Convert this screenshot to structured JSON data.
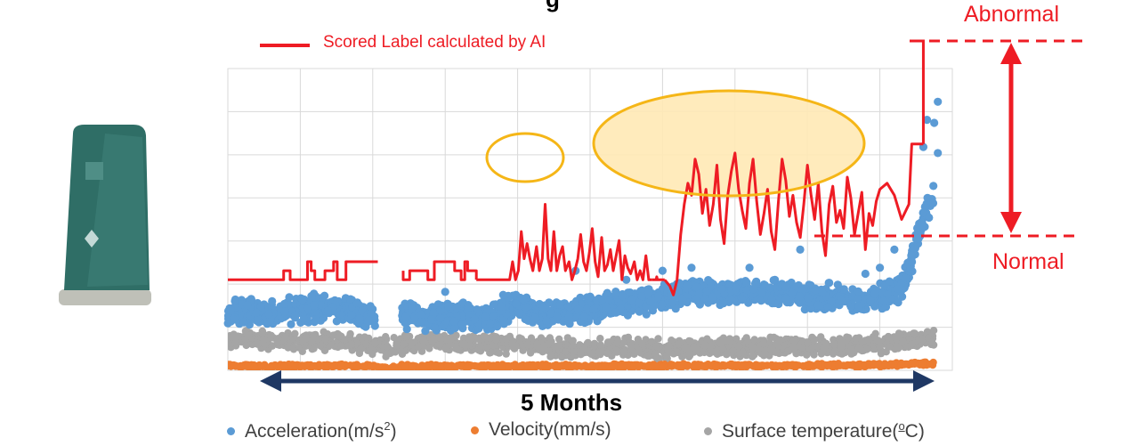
{
  "title_fragment": "g",
  "labels": {
    "abnormal": "Abnormal",
    "normal": "Normal",
    "scored_label": "Scored Label calculated by AI",
    "duration": "5 Months"
  },
  "legend": [
    {
      "label_main": "Acceleration(m/s",
      "sup": "2",
      "label_end": ")",
      "color": "#5b9bd5"
    },
    {
      "label_main": "Velocity(mm/s)",
      "sup": "",
      "label_end": "",
      "color": "#ed7d31"
    },
    {
      "label_main": "Surface temperature(",
      "sup": "o",
      "label_end": "C)",
      "color": "#a5a5a5"
    }
  ],
  "colors": {
    "scored_label": "#ee1c24",
    "acceleration": "#5b9bd5",
    "velocity": "#ed7d31",
    "temperature": "#a5a5a5",
    "highlight_fill": "#ffe9b5",
    "highlight_stroke": "#f5b617",
    "arrow": "#1f3864"
  },
  "chart_data": {
    "type": "scatter",
    "title": "",
    "xlabel": "5 Months",
    "ylabel": "",
    "x_range": [
      0,
      100
    ],
    "ylim": [
      0,
      100
    ],
    "gridlines": true,
    "series": [
      {
        "name": "Scored Label calculated by AI",
        "kind": "line",
        "states": {
          "normal": 30,
          "abnormal": 75
        },
        "segments": [
          {
            "x": [
              0,
              7.7,
              7.7,
              8.6,
              8.6,
              11,
              11,
              11.5,
              11.5,
              12,
              12,
              13.4,
              13.4,
              14.6,
              14.6,
              15.1,
              15.1,
              16.3,
              16.3,
              20.7
            ],
            "y": [
              30,
              30,
              33,
              33,
              30,
              30,
              36,
              36,
              33,
              33,
              30,
              30,
              33,
              33,
              36,
              36,
              30,
              30,
              36,
              36
            ]
          },
          {
            "x": [
              24.2,
              24.2,
              25.1,
              25.1,
              27.6,
              27.6,
              28.5,
              28.5,
              31.3,
              31.3,
              32.2,
              32.2,
              32.7,
              32.7,
              33.1,
              33.1,
              34.3,
              34.3
            ],
            "y": [
              33,
              30,
              30,
              33,
              33,
              30,
              30,
              36,
              36,
              33,
              33,
              30,
              30,
              36,
              36,
              33,
              33,
              30
            ]
          },
          {
            "x": [
              34.3,
              38.9,
              39.3,
              39.7,
              40.1,
              40.5,
              40.9,
              41.3,
              41.7,
              42.1,
              42.6,
              43,
              43.4,
              43.8,
              44.2,
              44.6,
              45,
              45.4,
              45.8,
              46.2,
              46.6,
              47.1,
              47.5,
              47.9,
              48.3,
              48.7,
              49.1,
              49.5,
              49.9,
              50.3,
              50.7,
              51.1,
              51.6,
              52,
              52.4,
              52.8,
              53.2,
              53.6,
              54,
              54.4,
              54.8,
              55.2,
              55.6,
              56.1,
              56.5,
              56.9,
              57.3,
              57.7,
              58.1,
              58.5
            ],
            "y": [
              30,
              30,
              36,
              30,
              33,
              46,
              37,
              42,
              37,
              33,
              41,
              33,
              37,
              55,
              37,
              33,
              46,
              33,
              38,
              41,
              33,
              36,
              30,
              33,
              37,
              45,
              36,
              33,
              39,
              47,
              36,
              31,
              44,
              33,
              35,
              40,
              33,
              38,
              43,
              30,
              38,
              34,
              32,
              36,
              30,
              33,
              30,
              38,
              30,
              30
            ]
          },
          {
            "x": [
              58.5,
              58.6,
              58.7,
              58.8,
              58.9,
              59.1,
              59.2,
              59.3,
              59.4,
              59.5,
              59.6,
              59.7,
              59.8,
              59.9,
              60.1,
              60.2,
              60.3
            ],
            "y": [
              30,
              30,
              30,
              30,
              30,
              30,
              31,
              30,
              30,
              30,
              30,
              30,
              30,
              30,
              30,
              30,
              30
            ]
          },
          {
            "x": [
              60.3,
              61,
              61.5,
              62,
              62.5,
              63,
              63.5,
              64,
              64.5,
              65,
              65.5,
              66,
              66.5,
              67,
              67.5,
              68,
              68.5,
              69,
              69.5,
              70,
              70.5,
              71,
              71.5,
              72,
              72.5,
              73,
              73.5,
              74,
              74.5,
              75,
              75.5,
              76,
              76.5,
              77,
              77.5,
              78,
              78.5,
              79,
              79.5,
              80,
              80.5,
              81,
              81.5,
              82,
              82.5,
              83,
              83.5,
              84,
              84.5,
              85,
              85.5,
              86,
              86.5,
              87,
              87.5,
              88,
              88.5,
              89,
              89.5,
              90,
              91,
              92,
              93,
              94,
              94.4,
              95,
              95.5,
              96
            ],
            "y": [
              30,
              28,
              25,
              30,
              45,
              55,
              62,
              58,
              70,
              65,
              52,
              60,
              48,
              55,
              68,
              50,
              42,
              58,
              66,
              72,
              60,
              53,
              47,
              62,
              70,
              56,
              45,
              52,
              60,
              46,
              40,
              56,
              70,
              63,
              51,
              58,
              49,
              44,
              55,
              68,
              58,
              50,
              62,
              46,
              38,
              55,
              61,
              49,
              53,
              47,
              64,
              57,
              45,
              52,
              59,
              40,
              52,
              48,
              56,
              60,
              62,
              58,
              50,
              55,
              75,
              75,
              75,
              75
            ]
          }
        ]
      },
      {
        "name": "Acceleration(m/s2)",
        "kind": "points",
        "baseline": [
          [
            0,
            19
          ],
          [
            3,
            20
          ],
          [
            6,
            18
          ],
          [
            9,
            20
          ],
          [
            12,
            21
          ],
          [
            16,
            20
          ],
          [
            20,
            18
          ],
          [
            20.5,
            16
          ],
          [
            24,
            18
          ],
          [
            28,
            17
          ],
          [
            32,
            18
          ],
          [
            36,
            17
          ],
          [
            40,
            22
          ],
          [
            44,
            18
          ],
          [
            48,
            20
          ],
          [
            52,
            21
          ],
          [
            56,
            23
          ],
          [
            60,
            24
          ],
          [
            64,
            26
          ],
          [
            68,
            25
          ],
          [
            72,
            26
          ],
          [
            76,
            26
          ],
          [
            80,
            24
          ],
          [
            84,
            24
          ],
          [
            88,
            23
          ],
          [
            91,
            25
          ],
          [
            93,
            28
          ],
          [
            94,
            33
          ],
          [
            95,
            42
          ],
          [
            96,
            51
          ],
          [
            97,
            56
          ],
          [
            97.5,
            57
          ]
        ]
      },
      {
        "name": "Velocity(mm/s)",
        "kind": "points",
        "baseline": [
          [
            0,
            1.5
          ],
          [
            10,
            1.4
          ],
          [
            20,
            1.4
          ],
          [
            22,
            0.6
          ],
          [
            24,
            1.3
          ],
          [
            40,
            1.4
          ],
          [
            60,
            1.5
          ],
          [
            80,
            1.6
          ],
          [
            90,
            1.8
          ],
          [
            97.5,
            2.3
          ]
        ]
      },
      {
        "name": "Surface temperature(oC)",
        "kind": "points",
        "baseline": [
          [
            0,
            10.5
          ],
          [
            6,
            10
          ],
          [
            12,
            9.5
          ],
          [
            18,
            9
          ],
          [
            20.5,
            7.5
          ],
          [
            24,
            8.5
          ],
          [
            30,
            9.5
          ],
          [
            36,
            9
          ],
          [
            40,
            8.5
          ],
          [
            45,
            7.5
          ],
          [
            50,
            7
          ],
          [
            55,
            8
          ],
          [
            60,
            7
          ],
          [
            65,
            7.5
          ],
          [
            70,
            7.5
          ],
          [
            75,
            8
          ],
          [
            80,
            8
          ],
          [
            85,
            8
          ],
          [
            90,
            9
          ],
          [
            93,
            9.5
          ],
          [
            97.5,
            10.5
          ]
        ]
      }
    ],
    "annotations": [
      {
        "type": "ellipse",
        "description": "small highlight",
        "x_range": [
          36.7,
          46.6
        ]
      },
      {
        "type": "ellipse",
        "description": "abnormal period highlight",
        "x_range": [
          50.8,
          88.7
        ]
      },
      {
        "type": "double-arrow",
        "label": "5 Months",
        "axis": "x"
      },
      {
        "type": "double-arrow",
        "from": "Normal",
        "to": "Abnormal",
        "axis": "y"
      }
    ]
  }
}
